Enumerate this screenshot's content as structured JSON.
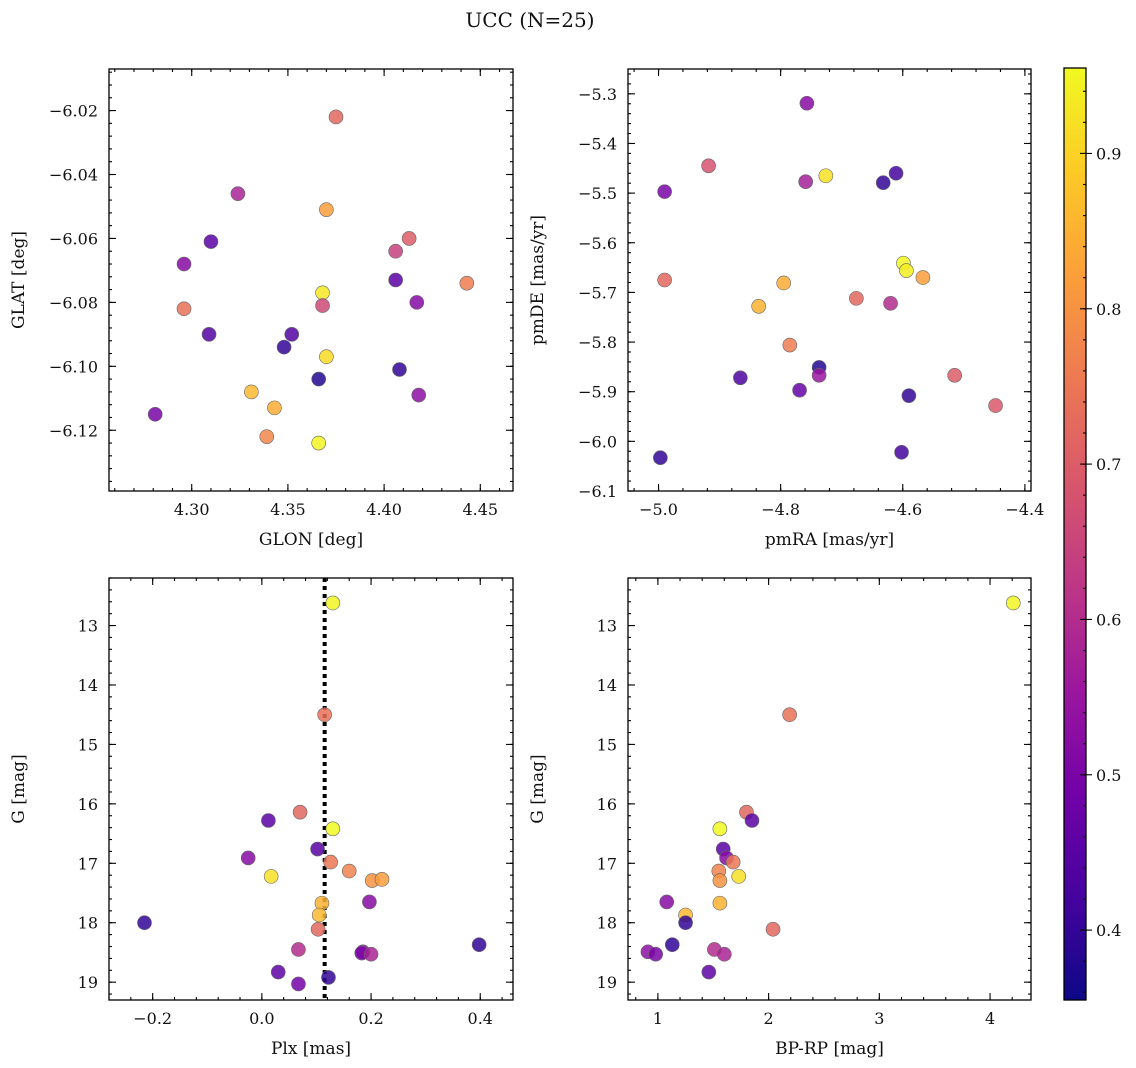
{
  "figure": {
    "title": "UCC (N=25)"
  },
  "chart_data": [
    {
      "type": "scatter",
      "name": "glon-glat",
      "xlabel": "GLON [deg]",
      "ylabel": "GLAT [deg]",
      "xlim": [
        4.257,
        4.467
      ],
      "ylim": [
        -6.139,
        -6.007
      ],
      "y_inverted": false,
      "xticks": [
        4.3,
        4.35,
        4.4,
        4.45
      ],
      "xtick_labels": [
        "4.30",
        "4.35",
        "4.40",
        "4.45"
      ],
      "yticks": [
        -6.12,
        -6.1,
        -6.08,
        -6.06,
        -6.04,
        -6.02
      ],
      "ytick_labels": [
        "−6.12",
        "−6.10",
        "−6.08",
        "−6.06",
        "−6.04",
        "−6.02"
      ],
      "x": [
        4.375,
        4.37,
        4.324,
        4.31,
        4.296,
        4.296,
        4.406,
        4.413,
        4.406,
        4.443,
        4.368,
        4.417,
        4.368,
        4.309,
        4.352,
        4.348,
        4.37,
        4.366,
        4.408,
        4.331,
        4.343,
        4.418,
        4.281,
        4.339,
        4.366
      ],
      "y": [
        -6.022,
        -6.051,
        -6.046,
        -6.061,
        -6.068,
        -6.082,
        -6.064,
        -6.06,
        -6.073,
        -6.074,
        -6.077,
        -6.08,
        -6.081,
        -6.09,
        -6.09,
        -6.094,
        -6.097,
        -6.104,
        -6.101,
        -6.108,
        -6.113,
        -6.109,
        -6.115,
        -6.122,
        -6.124
      ],
      "color_values": [
        0.72,
        0.82,
        0.58,
        0.45,
        0.52,
        0.74,
        0.64,
        0.7,
        0.45,
        0.76,
        0.93,
        0.52,
        0.66,
        0.44,
        0.44,
        0.4,
        0.91,
        0.38,
        0.4,
        0.86,
        0.84,
        0.53,
        0.5,
        0.78,
        0.95
      ]
    },
    {
      "type": "scatter",
      "name": "pmra-pmde",
      "xlabel": "pmRA [mas/yr]",
      "ylabel": "pmDE [mas/yr]",
      "xlim": [
        -5.05,
        -4.39
      ],
      "ylim": [
        -6.1,
        -5.25
      ],
      "y_inverted": false,
      "xticks": [
        -5.0,
        -4.8,
        -4.6,
        -4.4
      ],
      "xtick_labels": [
        "−5.0",
        "−4.8",
        "−4.6",
        "−4.4"
      ],
      "yticks": [
        -6.1,
        -6.0,
        -5.9,
        -5.8,
        -5.7,
        -5.6,
        -5.5,
        -5.4,
        -5.3
      ],
      "ytick_labels": [
        "−6.1",
        "−6.0",
        "−5.9",
        "−5.8",
        "−5.7",
        "−5.6",
        "−5.5",
        "−5.4",
        "−5.3"
      ],
      "x": [
        -4.757,
        -4.99,
        -4.918,
        -4.759,
        -4.726,
        -4.632,
        -4.611,
        -4.99,
        -4.599,
        -4.594,
        -4.567,
        -4.795,
        -4.836,
        -4.676,
        -4.62,
        -4.785,
        -4.737,
        -4.866,
        -4.769,
        -4.737,
        -4.59,
        -4.515,
        -4.448,
        -4.997,
        -4.602
      ],
      "y": [
        -5.319,
        -5.497,
        -5.445,
        -5.477,
        -5.465,
        -5.479,
        -5.46,
        -5.675,
        -5.641,
        -5.656,
        -5.67,
        -5.681,
        -5.728,
        -5.712,
        -5.722,
        -5.806,
        -5.851,
        -5.872,
        -5.897,
        -5.867,
        -5.908,
        -5.867,
        -5.928,
        -6.033,
        -6.022
      ],
      "color_values": [
        0.52,
        0.5,
        0.68,
        0.57,
        0.92,
        0.4,
        0.42,
        0.72,
        0.95,
        0.94,
        0.82,
        0.84,
        0.85,
        0.72,
        0.6,
        0.76,
        0.38,
        0.43,
        0.47,
        0.55,
        0.4,
        0.7,
        0.69,
        0.4,
        0.42
      ]
    },
    {
      "type": "scatter",
      "name": "plx-g",
      "xlabel": "Plx [mas]",
      "ylabel": "G [mag]",
      "xlim": [
        -0.28,
        0.46
      ],
      "ylim": [
        12.2,
        19.3
      ],
      "y_inverted": true,
      "reference_line_x": 0.115,
      "xticks": [
        -0.2,
        0.0,
        0.2,
        0.4
      ],
      "xtick_labels": [
        "−0.2",
        "0.0",
        "0.2",
        "0.4"
      ],
      "yticks": [
        13,
        14,
        15,
        16,
        17,
        18,
        19
      ],
      "ytick_labels": [
        "13",
        "14",
        "15",
        "16",
        "17",
        "18",
        "19"
      ],
      "x": [
        0.13,
        0.115,
        0.07,
        0.012,
        0.13,
        -0.025,
        0.102,
        0.126,
        0.017,
        0.16,
        0.202,
        0.22,
        0.197,
        0.11,
        0.105,
        -0.215,
        0.103,
        0.067,
        0.185,
        0.183,
        0.2,
        0.398,
        0.03,
        0.122,
        0.067
      ],
      "y": [
        12.62,
        14.5,
        16.14,
        16.28,
        16.42,
        16.91,
        16.76,
        16.98,
        17.22,
        17.13,
        17.29,
        17.27,
        17.65,
        17.67,
        17.87,
        18.0,
        18.11,
        18.45,
        18.49,
        18.51,
        18.53,
        18.37,
        18.83,
        18.92,
        19.03
      ],
      "color_values": [
        0.95,
        0.74,
        0.72,
        0.45,
        0.96,
        0.52,
        0.45,
        0.75,
        0.92,
        0.77,
        0.8,
        0.82,
        0.52,
        0.85,
        0.86,
        0.4,
        0.72,
        0.6,
        0.53,
        0.5,
        0.58,
        0.4,
        0.46,
        0.4,
        0.49
      ]
    },
    {
      "type": "scatter",
      "name": "color-magnitude",
      "xlabel": "BP-RP [mag]",
      "ylabel": "G [mag]",
      "xlim": [
        0.73,
        4.37
      ],
      "ylim": [
        12.2,
        19.3
      ],
      "y_inverted": true,
      "xticks": [
        1,
        2,
        3,
        4
      ],
      "xtick_labels": [
        "1",
        "2",
        "3",
        "4"
      ],
      "yticks": [
        13,
        14,
        15,
        16,
        17,
        18,
        19
      ],
      "ytick_labels": [
        "13",
        "14",
        "15",
        "16",
        "17",
        "18",
        "19"
      ],
      "x": [
        4.21,
        2.19,
        1.8,
        1.85,
        1.56,
        1.59,
        1.62,
        1.68,
        1.73,
        1.55,
        1.56,
        1.56,
        1.08,
        1.25,
        1.25,
        2.04,
        1.13,
        1.51,
        1.6,
        0.91,
        0.98,
        1.46
      ],
      "y": [
        12.62,
        14.5,
        16.14,
        16.28,
        16.42,
        16.76,
        16.91,
        16.98,
        17.22,
        17.13,
        17.29,
        17.67,
        17.65,
        17.87,
        18.0,
        18.11,
        18.37,
        18.45,
        18.53,
        18.49,
        18.53,
        18.83
      ],
      "color_values": [
        0.95,
        0.74,
        0.72,
        0.45,
        0.96,
        0.45,
        0.52,
        0.75,
        0.92,
        0.77,
        0.8,
        0.85,
        0.52,
        0.86,
        0.4,
        0.72,
        0.4,
        0.6,
        0.58,
        0.53,
        0.5,
        0.46
      ]
    }
  ],
  "colorbar": {
    "colormap": "plasma",
    "range": [
      0.355,
      0.955
    ],
    "ticks": [
      0.4,
      0.5,
      0.6,
      0.7,
      0.8,
      0.9
    ],
    "tick_labels": [
      "0.4",
      "0.5",
      "0.6",
      "0.7",
      "0.8",
      "0.9"
    ],
    "stops": [
      "#0d0887",
      "#46039f",
      "#7201a8",
      "#9c179e",
      "#bd3786",
      "#d8576b",
      "#ed7953",
      "#fb9f3a",
      "#fdca26",
      "#f0f921"
    ]
  }
}
